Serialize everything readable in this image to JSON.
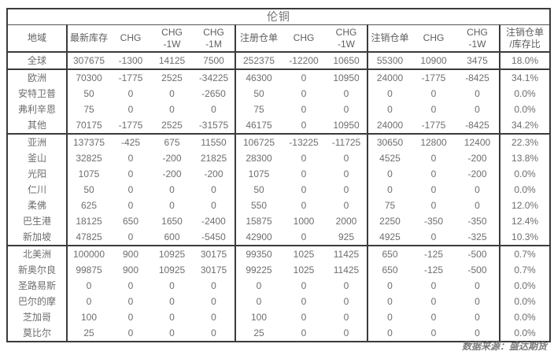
{
  "title": "伦铜",
  "footer": "数据来源：盛达期货",
  "colors": {
    "negative_value": "#e23b32",
    "text_gray": "#6e6e6e",
    "border_dark": "#3b3b3b"
  },
  "chart_data": {
    "type": "table",
    "title": "伦铜",
    "columns": [
      "地域",
      "最新库存",
      "CHG",
      "CHG\n-1W",
      "CHG\n-1M",
      "注册仓单",
      "CHG",
      "CHG\n-1W",
      "注销仓单",
      "CHG",
      "CHG\n-1W",
      "注销仓单\n/库存比"
    ],
    "rows": [
      {
        "label": "全球",
        "level": "parent",
        "group_start": false,
        "cells": [
          "307675",
          "-1300",
          "14125",
          "7500",
          "252375",
          "-12200",
          "10650",
          "55300",
          "10900",
          "3475",
          "18.0%"
        ]
      },
      {
        "label": "欧洲",
        "level": "parent",
        "group_start": true,
        "cells": [
          "70300",
          "-1775",
          "2525",
          "-34225",
          "46300",
          "0",
          "10950",
          "24000",
          "-1775",
          "-8425",
          "34.1%"
        ]
      },
      {
        "label": "安特卫普",
        "level": "child",
        "group_start": false,
        "cells": [
          "50",
          "0",
          "0",
          "-2650",
          "50",
          "0",
          "0",
          "0",
          "0",
          "0",
          "0.0%"
        ]
      },
      {
        "label": "弗利辛恩",
        "level": "child",
        "group_start": false,
        "cells": [
          "75",
          "0",
          "0",
          "0",
          "75",
          "0",
          "0",
          "0",
          "0",
          "0",
          "0.0%"
        ]
      },
      {
        "label": "其他",
        "level": "child",
        "group_start": false,
        "cells": [
          "70175",
          "-1775",
          "2525",
          "-31575",
          "46175",
          "0",
          "10950",
          "24000",
          "-1775",
          "-8425",
          "34.2%"
        ]
      },
      {
        "label": "亚洲",
        "level": "parent",
        "group_start": true,
        "cells": [
          "137375",
          "-425",
          "675",
          "11550",
          "106725",
          "-13225",
          "-11725",
          "30650",
          "12800",
          "12400",
          "22.3%"
        ]
      },
      {
        "label": "釜山",
        "level": "child",
        "group_start": false,
        "cells": [
          "32825",
          "0",
          "-200",
          "21825",
          "28300",
          "0",
          "0",
          "4525",
          "0",
          "-200",
          "13.8%"
        ]
      },
      {
        "label": "光阳",
        "level": "child",
        "group_start": false,
        "cells": [
          "1075",
          "0",
          "-200",
          "-200",
          "1075",
          "0",
          "0",
          "0",
          "0",
          "-200",
          "0.0%"
        ]
      },
      {
        "label": "仁川",
        "level": "child",
        "group_start": false,
        "cells": [
          "50",
          "0",
          "0",
          "0",
          "50",
          "0",
          "0",
          "0",
          "0",
          "0",
          "0.0%"
        ]
      },
      {
        "label": "柔佛",
        "level": "child",
        "group_start": false,
        "cells": [
          "625",
          "0",
          "0",
          "0",
          "550",
          "0",
          "0",
          "75",
          "0",
          "0",
          "12.0%"
        ]
      },
      {
        "label": "巴生港",
        "level": "child",
        "group_start": false,
        "cells": [
          "18125",
          "650",
          "1650",
          "-2400",
          "15875",
          "1000",
          "2000",
          "2250",
          "-350",
          "-350",
          "12.4%"
        ]
      },
      {
        "label": "新加坡",
        "level": "child",
        "group_start": false,
        "cells": [
          "47825",
          "0",
          "600",
          "-5450",
          "42900",
          "0",
          "925",
          "4925",
          "0",
          "-325",
          "10.3%"
        ]
      },
      {
        "label": "北美洲",
        "level": "parent",
        "group_start": true,
        "cells": [
          "100000",
          "900",
          "10925",
          "30175",
          "99350",
          "1025",
          "11425",
          "650",
          "-125",
          "-500",
          "0.7%"
        ]
      },
      {
        "label": "新奥尔良",
        "level": "child",
        "group_start": false,
        "cells": [
          "99875",
          "900",
          "10925",
          "30175",
          "99225",
          "1025",
          "11425",
          "650",
          "-125",
          "-500",
          "0.7%"
        ]
      },
      {
        "label": "圣路易斯",
        "level": "child",
        "group_start": false,
        "cells": [
          "0",
          "0",
          "0",
          "0",
          "0",
          "0",
          "0",
          "0",
          "0",
          "0",
          "0.0%"
        ]
      },
      {
        "label": "巴尔的摩",
        "level": "child",
        "group_start": false,
        "cells": [
          "0",
          "0",
          "0",
          "0",
          "0",
          "0",
          "0",
          "0",
          "0",
          "0",
          "0.0%"
        ]
      },
      {
        "label": "芝加哥",
        "level": "child",
        "group_start": false,
        "cells": [
          "100",
          "0",
          "0",
          "0",
          "100",
          "0",
          "0",
          "0",
          "0",
          "0",
          "0.0%"
        ]
      },
      {
        "label": "莫比尔",
        "level": "child",
        "group_start": false,
        "cells": [
          "25",
          "0",
          "0",
          "0",
          "25",
          "0",
          "0",
          "0",
          "0",
          "0",
          "0.0%"
        ]
      }
    ]
  }
}
